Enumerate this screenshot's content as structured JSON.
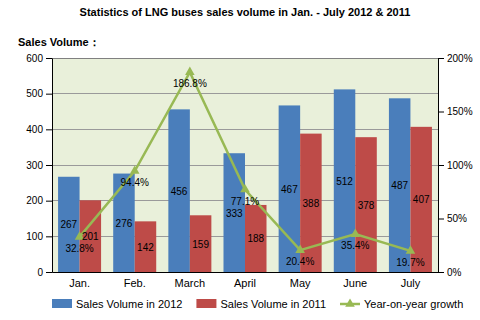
{
  "chart_data": {
    "type": "bar",
    "title": "Statistics of LNG buses sales volume in Jan. - July 2012 & 2011",
    "y_label": "Sales Volume：",
    "categories": [
      "Jan.",
      "Feb.",
      "March",
      "April",
      "May",
      "June",
      "July"
    ],
    "series": [
      {
        "name": "Sales Volume in 2012",
        "type": "bar",
        "color": "#4a7ebb",
        "data_labels": true,
        "values": [
          267,
          276,
          456,
          333,
          467,
          512,
          487
        ]
      },
      {
        "name": "Sales Volume in 2011",
        "type": "bar",
        "color": "#be4b48",
        "data_labels": true,
        "values": [
          201,
          142,
          159,
          188,
          388,
          378,
          407
        ]
      },
      {
        "name": "Year-on-year growth",
        "type": "line",
        "axis": "y2",
        "color": "#98b954",
        "marker": "triangle",
        "data_labels": true,
        "values": [
          32.8,
          94.4,
          186.8,
          77.1,
          20.4,
          35.4,
          19.7
        ],
        "value_labels": [
          "32.8%",
          "94.4%",
          "186.8%",
          "77.1%",
          "20.4%",
          "35.4%",
          "19.7%"
        ]
      }
    ],
    "ylim": [
      0,
      600
    ],
    "yticks": [
      0,
      100,
      200,
      300,
      400,
      500,
      600
    ],
    "y2lim": [
      0,
      200
    ],
    "y2ticks": [
      {
        "value": 0,
        "label": "0%"
      },
      {
        "value": 50,
        "label": "50%"
      },
      {
        "value": 100,
        "label": "100%"
      },
      {
        "value": 150,
        "label": "150%"
      },
      {
        "value": 200,
        "label": "200%"
      }
    ],
    "grid": true,
    "legend": "bottom"
  }
}
